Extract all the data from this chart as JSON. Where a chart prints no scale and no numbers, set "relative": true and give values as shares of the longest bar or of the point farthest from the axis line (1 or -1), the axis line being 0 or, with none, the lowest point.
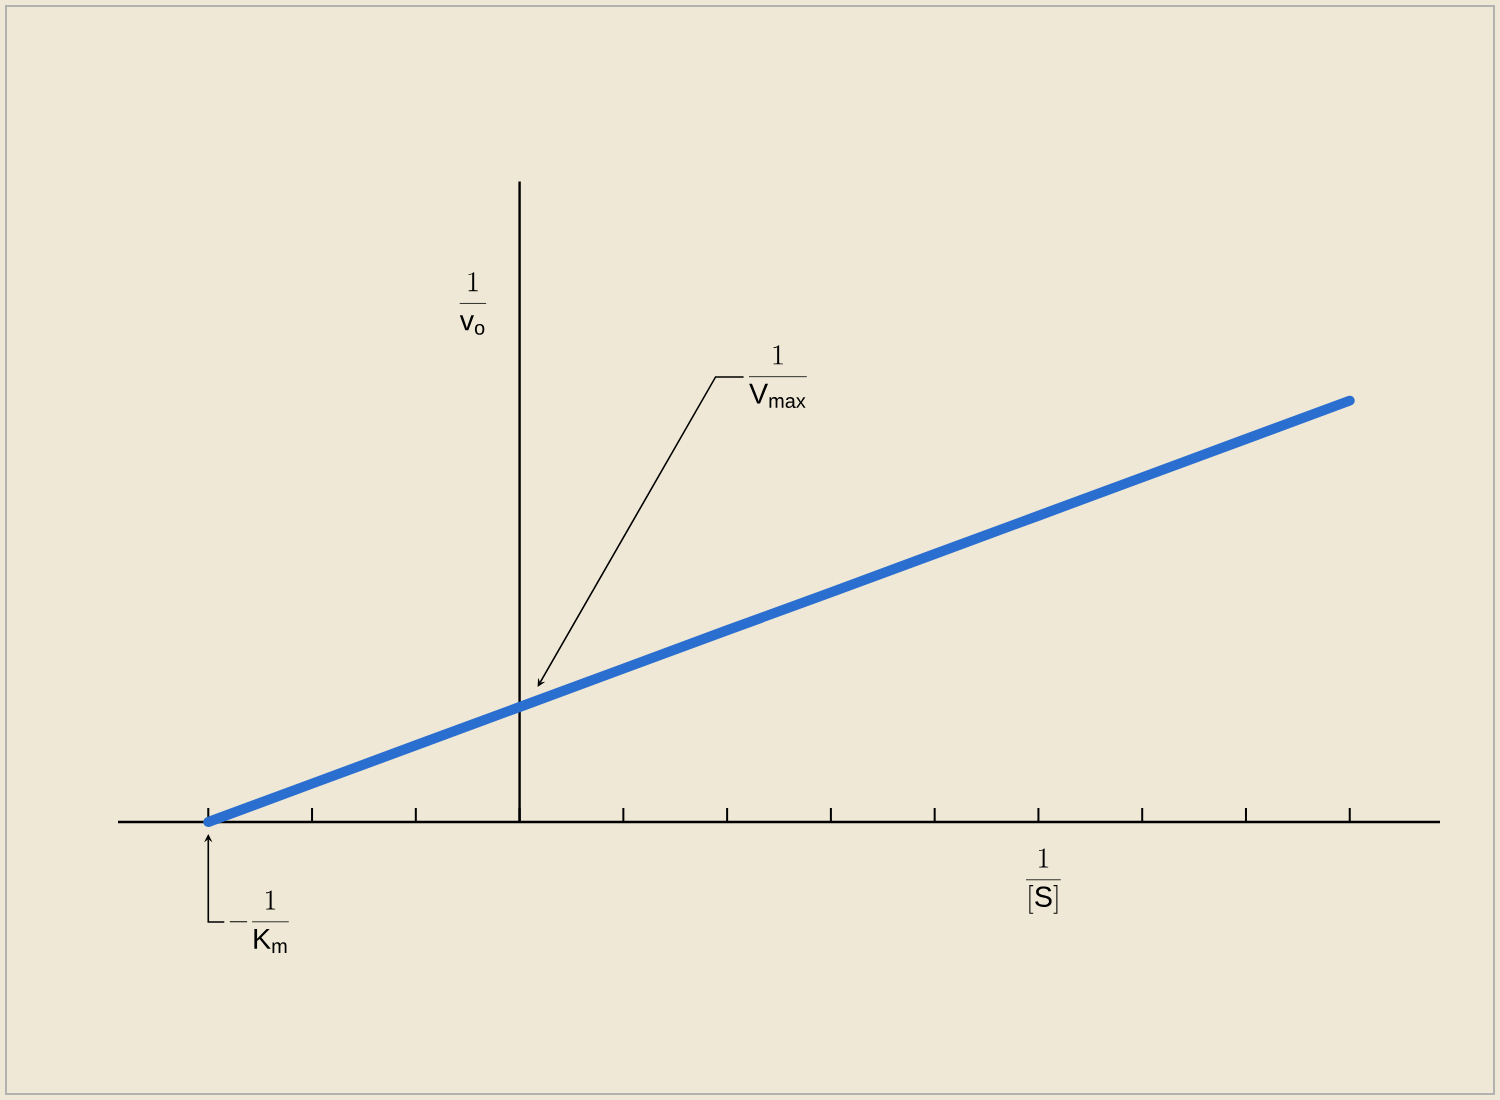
{
  "chart_data": {
    "type": "line",
    "relative": true,
    "xlabel": "\\frac{1}{\\mathrm{[S]}}",
    "ylabel": "\\frac{1}{\\mathrm{v_o}}",
    "categories": [
      null,
      null,
      null,
      null,
      null,
      null,
      null,
      null,
      null,
      null,
      null,
      null
    ],
    "series": [
      {
        "color": "#2a6fd0",
        "values": [
          0,
          0.091,
          0.182,
          0.273,
          0.364,
          0.455,
          0.545,
          0.636,
          0.727,
          0.818,
          0.909,
          1
        ]
      }
    ],
    "annotations": [
      "\\frac{1}{\\mathrm{V_{max}}}",
      "-\\frac{1}{\\mathrm{K_m}}"
    ]
  }
}
